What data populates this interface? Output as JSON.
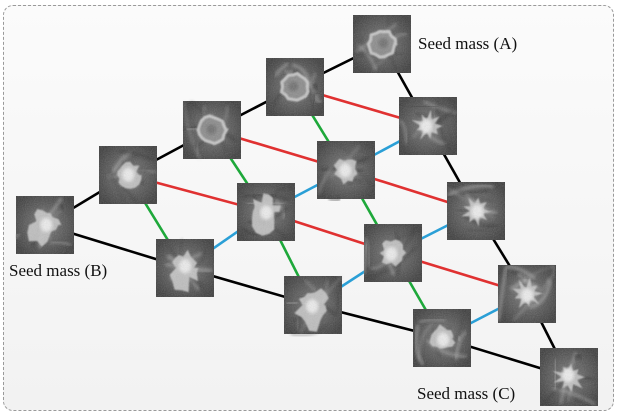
{
  "labels": {
    "seed_a": "Seed mass (A)",
    "seed_b": "Seed mass (B)",
    "seed_c": "Seed mass (C)"
  },
  "colors": {
    "edge_black": "#000000",
    "edge_red": "#e03131",
    "edge_green": "#1ea83a",
    "edge_blue": "#2a9fd6"
  },
  "tiles": [
    {
      "id": "A",
      "kind": "round",
      "seed": 1
    },
    {
      "id": "AB1",
      "kind": "round",
      "seed": 2
    },
    {
      "id": "AB2",
      "kind": "round",
      "seed": 3
    },
    {
      "id": "AB3",
      "kind": "mixed",
      "seed": 4
    },
    {
      "id": "B",
      "kind": "irregular",
      "seed": 5
    },
    {
      "id": "R1a",
      "kind": "spiculated",
      "seed": 6
    },
    {
      "id": "R1b",
      "kind": "mixed",
      "seed": 7
    },
    {
      "id": "R1c",
      "kind": "irregular",
      "seed": 8
    },
    {
      "id": "R2a",
      "kind": "spiculated",
      "seed": 9
    },
    {
      "id": "R2b",
      "kind": "mixed",
      "seed": 10
    },
    {
      "id": "R2c",
      "kind": "irregular",
      "seed": 11
    },
    {
      "id": "R3a",
      "kind": "spiculated",
      "seed": 12
    },
    {
      "id": "R3b",
      "kind": "mixed",
      "seed": 13
    },
    {
      "id": "R3c",
      "kind": "irregular",
      "seed": 14
    },
    {
      "id": "C",
      "kind": "spiculated",
      "seed": 15
    }
  ]
}
